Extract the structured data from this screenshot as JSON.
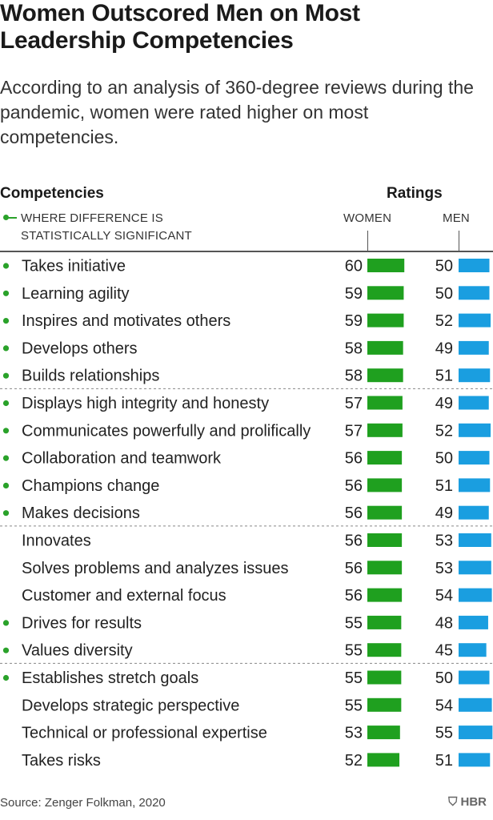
{
  "header": {
    "title": "Women Outscored Men on Most Leadership Competencies",
    "subtitle": "According to an analysis of 360-degree reviews during the pandemic, women were rated higher on most competencies."
  },
  "table_header": {
    "competencies_label": "Competencies",
    "ratings_label": "Ratings",
    "legend_text": "WHERE DIFFERENCE IS STATISTICALLY SIGNIFICANT",
    "women_label": "WOMEN",
    "men_label": "MEN"
  },
  "colors": {
    "women": "#1fa01f",
    "men": "#1a9ee0",
    "dot": "#2aa22a"
  },
  "chart_data": {
    "type": "bar",
    "series": [
      {
        "name": "WOMEN"
      },
      {
        "name": "MEN"
      }
    ],
    "rows": [
      {
        "label": "Takes initiative",
        "women": 60,
        "men": 50,
        "significant": true
      },
      {
        "label": "Learning agility",
        "women": 59,
        "men": 50,
        "significant": true
      },
      {
        "label": "Inspires and motivates others",
        "women": 59,
        "men": 52,
        "significant": true
      },
      {
        "label": "Develops others",
        "women": 58,
        "men": 49,
        "significant": true
      },
      {
        "label": "Builds relationships",
        "women": 58,
        "men": 51,
        "significant": true
      },
      {
        "label": "Displays high integrity and honesty",
        "women": 57,
        "men": 49,
        "significant": true
      },
      {
        "label": "Communicates powerfully and prolifically",
        "women": 57,
        "men": 52,
        "significant": true
      },
      {
        "label": "Collaboration and teamwork",
        "women": 56,
        "men": 50,
        "significant": true
      },
      {
        "label": "Champions change",
        "women": 56,
        "men": 51,
        "significant": true
      },
      {
        "label": "Makes decisions",
        "women": 56,
        "men": 49,
        "significant": true
      },
      {
        "label": "Innovates",
        "women": 56,
        "men": 53,
        "significant": false
      },
      {
        "label": "Solves problems and analyzes issues",
        "women": 56,
        "men": 53,
        "significant": false
      },
      {
        "label": "Customer and external focus",
        "women": 56,
        "men": 54,
        "significant": false
      },
      {
        "label": "Drives for results",
        "women": 55,
        "men": 48,
        "significant": true
      },
      {
        "label": "Values diversity",
        "women": 55,
        "men": 45,
        "significant": true
      },
      {
        "label": "Establishes stretch goals",
        "women": 55,
        "men": 50,
        "significant": true
      },
      {
        "label": "Develops strategic perspective",
        "women": 55,
        "men": 54,
        "significant": false
      },
      {
        "label": "Technical or professional expertise",
        "women": 53,
        "men": 55,
        "significant": false
      },
      {
        "label": "Takes risks",
        "women": 52,
        "men": 51,
        "significant": false
      }
    ],
    "group_breaks_after": [
      4,
      9,
      14
    ]
  },
  "footer": {
    "source": "Source: Zenger Folkman, 2020",
    "logo": "HBR"
  }
}
